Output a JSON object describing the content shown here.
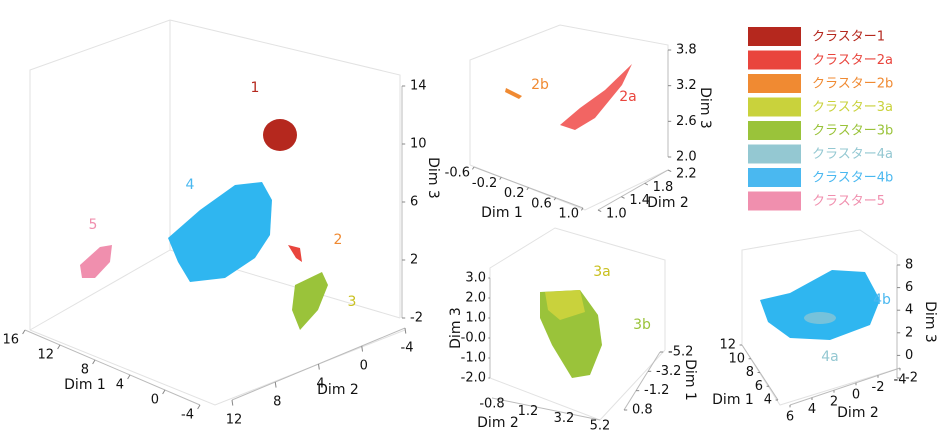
{
  "chart_data": [
    {
      "type": "scatter3d",
      "axes": [
        {
          "label": "Dim 1",
          "lim": [
            16,
            -4
          ],
          "ticks": [
            16,
            12,
            8,
            4,
            0,
            -4
          ]
        },
        {
          "label": "Dim 2",
          "lim": [
            12,
            -4
          ],
          "ticks": [
            12,
            8,
            4,
            0,
            -4
          ]
        },
        {
          "label": "Dim 3",
          "lim": [
            -2,
            14
          ],
          "ticks": [
            -2,
            2,
            6,
            10,
            14
          ]
        }
      ],
      "annotations": [
        {
          "text": "1",
          "color": "#b5281e"
        },
        {
          "text": "4",
          "color": "#4ab8f0"
        },
        {
          "text": "5",
          "color": "#f08fae"
        },
        {
          "text": "2",
          "color": "#f08a32"
        },
        {
          "text": "3",
          "color": "#c9c020"
        }
      ],
      "series": [
        {
          "name": "クラスター1",
          "color": "#b5281e"
        },
        {
          "name": "クラスター2a",
          "color": "#e9453d"
        },
        {
          "name": "クラスター2b",
          "color": "#f08a32"
        },
        {
          "name": "クラスター3a",
          "color": "#c9d23c"
        },
        {
          "name": "クラスター3b",
          "color": "#9ac33a"
        },
        {
          "name": "クラスター4a",
          "color": "#94c8d2"
        },
        {
          "name": "クラスター4b",
          "color": "#4ab8f0"
        },
        {
          "name": "クラスター5",
          "color": "#f08fae"
        }
      ]
    },
    {
      "type": "scatter3d",
      "axes": [
        {
          "label": "Dim 1",
          "lim": [
            -0.6,
            1
          ],
          "ticks": [
            -0.6,
            -0.2,
            0.2,
            0.6,
            {
              "value": 1,
              "label": "1.0"
            }
          ]
        },
        {
          "label": "Dim 2",
          "lim": [
            1,
            2.2
          ],
          "ticks": [
            {
              "value": 1,
              "label": "1.0"
            },
            1.4,
            1.8,
            2.2
          ]
        },
        {
          "label": "Dim 3",
          "lim": [
            2,
            3.8
          ],
          "ticks": [
            {
              "value": 2,
              "label": "2.0"
            },
            2.6,
            3.2,
            3.8
          ]
        }
      ],
      "annotations": [
        {
          "text": "2b",
          "color": "#f08a32"
        },
        {
          "text": "2a",
          "color": "#e9453d"
        }
      ]
    },
    {
      "type": "scatter3d",
      "axes": [
        {
          "label": "Dim 1",
          "lim": [
            0.8,
            -5.2
          ],
          "ticks": [
            0.8,
            -1.2,
            -3.2,
            -5.2
          ]
        },
        {
          "label": "Dim 2",
          "lim": [
            -0.8,
            5.2
          ],
          "ticks": [
            -0.8,
            1.2,
            3.2,
            5.2
          ]
        },
        {
          "label": "Dim 3",
          "lim": [
            -2,
            3
          ],
          "ticks": [
            {
              "value": -2,
              "label": "-2.0"
            },
            {
              "value": -1,
              "label": "-1.0"
            },
            {
              "value": 0,
              "label": "-0.0"
            },
            {
              "value": 1,
              "label": "1.0"
            },
            {
              "value": 2,
              "label": "2.0"
            },
            {
              "value": 3,
              "label": "3.0"
            }
          ]
        }
      ],
      "annotations": [
        {
          "text": "3a",
          "color": "#c9c020"
        },
        {
          "text": "3b",
          "color": "#9ac33a"
        }
      ]
    },
    {
      "type": "scatter3d",
      "axes": [
        {
          "label": "Dim 1",
          "lim": [
            12,
            4
          ],
          "ticks": [
            12,
            10,
            8,
            6,
            4
          ]
        },
        {
          "label": "Dim 2",
          "lim": [
            6,
            -4
          ],
          "ticks": [
            6,
            4,
            2,
            0,
            -2,
            -4
          ]
        },
        {
          "label": "Dim 3",
          "lim": [
            -2,
            8
          ],
          "ticks": [
            -2,
            0,
            2,
            4,
            6,
            8
          ]
        }
      ],
      "annotations": [
        {
          "text": "4b",
          "color": "#4ab8f0"
        },
        {
          "text": "4a",
          "color": "#94c8d2"
        }
      ]
    }
  ]
}
